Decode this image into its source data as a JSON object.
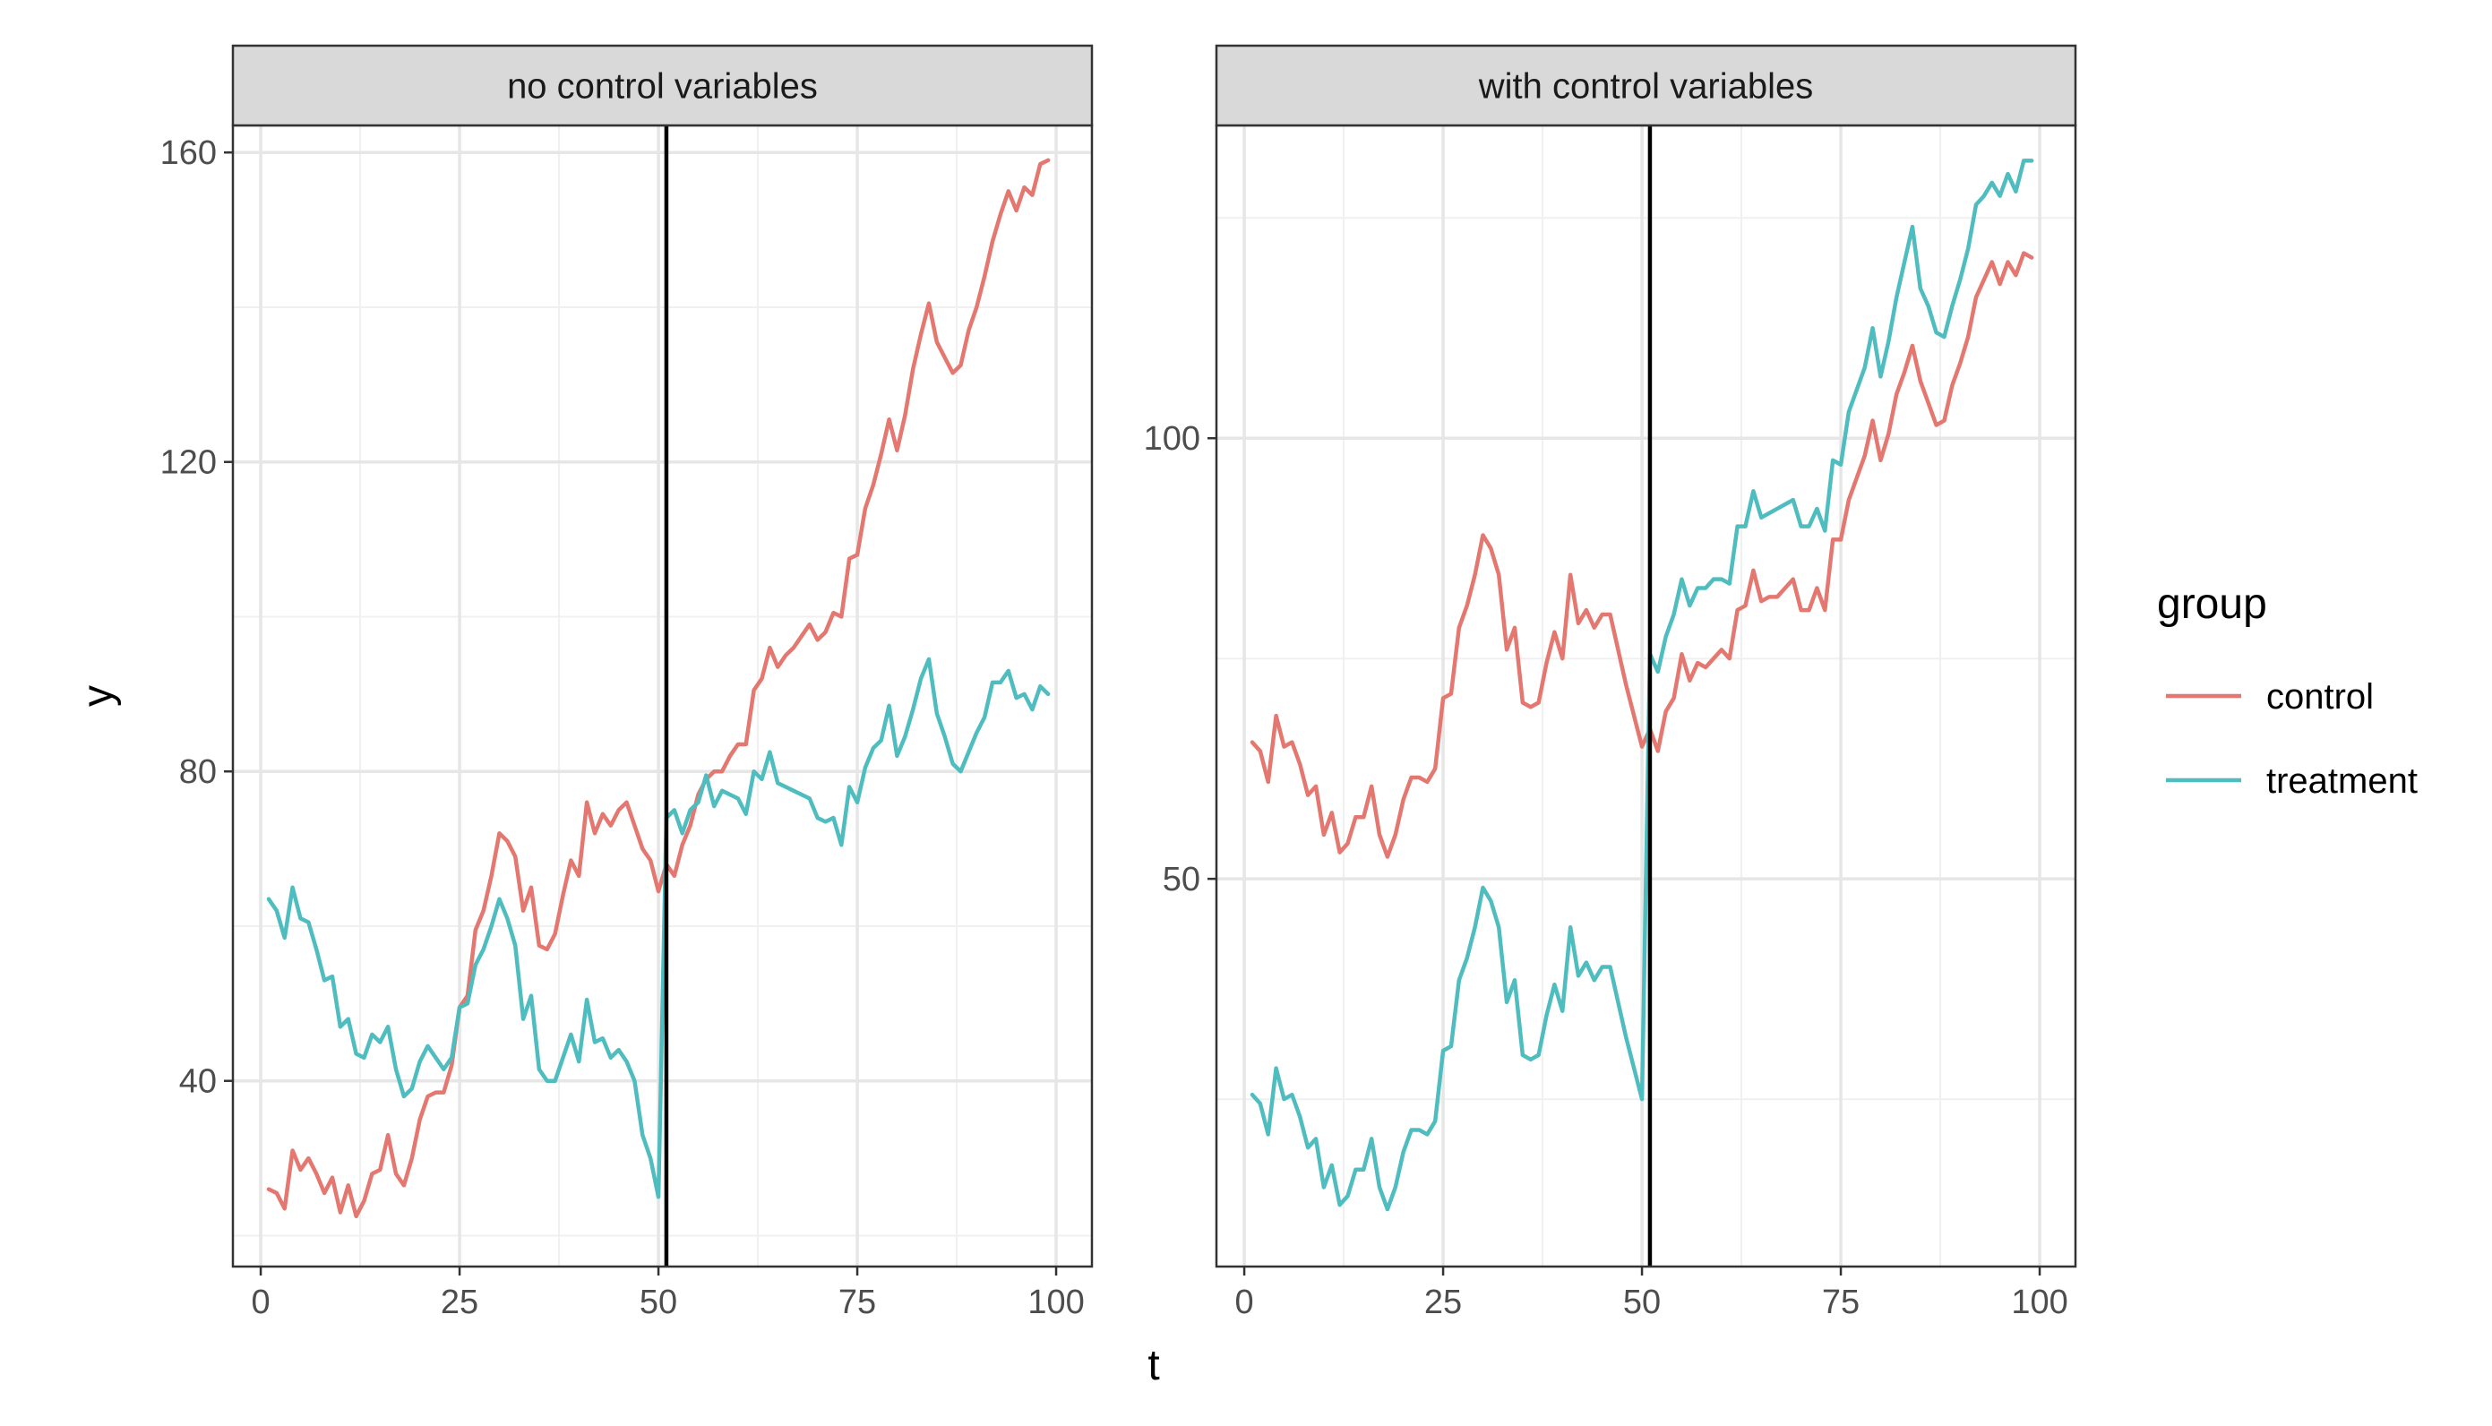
{
  "chart_data": {
    "type": "line",
    "xlabel": "t",
    "ylabel": "y",
    "legend": {
      "title": "group",
      "placement": "right"
    },
    "colors": {
      "control": "#E4776F",
      "treatment": "#4FBDBF",
      "vline": "#000000"
    },
    "grid": true,
    "panels": [
      {
        "title": "no control variables",
        "xlim": [
          -3.5,
          104.5
        ],
        "ylim": [
          16,
          163.5
        ],
        "xticks": [
          0,
          25,
          50,
          75,
          100
        ],
        "xtick_labels": [
          "0",
          "25",
          "50",
          "75",
          "100"
        ],
        "yticks": [
          40,
          80,
          120,
          160
        ],
        "ytick_labels": [
          "40",
          "80",
          "120",
          "160"
        ],
        "vline": 51,
        "x": [
          1,
          2,
          3,
          4,
          5,
          6,
          7,
          8,
          9,
          10,
          11,
          12,
          13,
          14,
          15,
          16,
          17,
          18,
          19,
          20,
          21,
          22,
          23,
          24,
          25,
          26,
          27,
          28,
          29,
          30,
          31,
          32,
          33,
          34,
          35,
          36,
          37,
          38,
          39,
          40,
          41,
          42,
          43,
          44,
          45,
          46,
          47,
          48,
          49,
          50,
          51,
          52,
          53,
          54,
          55,
          56,
          57,
          58,
          59,
          60,
          61,
          62,
          63,
          64,
          65,
          66,
          67,
          68,
          69,
          70,
          71,
          72,
          73,
          74,
          75,
          76,
          77,
          78,
          79,
          80,
          81,
          82,
          83,
          84,
          85,
          86,
          87,
          88,
          89,
          90,
          91,
          92,
          93,
          94,
          95,
          96,
          97,
          98,
          99,
          100
        ],
        "series": [
          {
            "name": "control",
            "values": [
              26,
              25.5,
              23.5,
              31,
              28.5,
              30,
              28,
              25.5,
              27.5,
              23,
              26.5,
              22.5,
              24.5,
              28,
              28.5,
              33,
              28,
              26.5,
              30,
              35,
              38,
              38.5,
              38.5,
              42,
              49.5,
              51,
              59.5,
              62,
              66.5,
              72,
              71,
              69,
              62,
              65,
              57.5,
              57,
              59,
              64,
              68.5,
              66.5,
              76,
              72,
              74.5,
              73,
              75,
              76,
              73,
              70,
              68.5,
              64.5,
              68,
              66.5,
              70.5,
              73,
              77,
              79,
              80,
              80,
              82,
              83.5,
              83.5,
              90.5,
              92,
              96,
              93.5,
              95,
              96,
              97.5,
              99,
              97,
              98,
              100.5,
              100,
              107.5,
              108,
              114,
              117,
              121,
              125.5,
              121.5,
              126,
              132,
              136.5,
              140.5,
              135.5,
              133.5,
              131.5,
              132.5,
              137,
              140,
              144,
              148.5,
              152,
              155,
              152.5,
              155.5,
              154.5,
              158.5,
              159
            ]
          },
          {
            "name": "treatment",
            "values": [
              63.5,
              62,
              58.5,
              65,
              61,
              60.5,
              57,
              53,
              53.5,
              47,
              48,
              43.5,
              43,
              46,
              45,
              47,
              41.5,
              38,
              39,
              42.5,
              44.5,
              43,
              41.5,
              43,
              49.5,
              50,
              55,
              57,
              60,
              63.5,
              61,
              57.5,
              48,
              51,
              41.5,
              40,
              40,
              43,
              46,
              42.5,
              50.5,
              45,
              45.5,
              43,
              44,
              42.5,
              40,
              33,
              30,
              25,
              74,
              75,
              72,
              75,
              76,
              79.5,
              75.5,
              77.5,
              77,
              76.5,
              74.5,
              80,
              79,
              82.5,
              78.5,
              78,
              77.5,
              77,
              76.5,
              74,
              73.5,
              74,
              70.5,
              78,
              76,
              80.5,
              83,
              84,
              88.5,
              82,
              84.5,
              88,
              92,
              94.5,
              87.5,
              84.5,
              81,
              80,
              82.5,
              85,
              87,
              91.5,
              91.5,
              93,
              89.5,
              90,
              88,
              91,
              90
            ]
          }
        ]
      },
      {
        "title": "with control variables",
        "xlim": [
          -3.5,
          104.5
        ],
        "ylim": [
          6,
          135.5
        ],
        "xticks": [
          0,
          25,
          50,
          75,
          100
        ],
        "xtick_labels": [
          "0",
          "25",
          "50",
          "75",
          "100"
        ],
        "yticks": [
          50,
          100
        ],
        "ytick_labels": [
          "50",
          "100"
        ],
        "vline": 51,
        "x": [
          1,
          2,
          3,
          4,
          5,
          6,
          7,
          8,
          9,
          10,
          11,
          12,
          13,
          14,
          15,
          16,
          17,
          18,
          19,
          20,
          21,
          22,
          23,
          24,
          25,
          26,
          27,
          28,
          29,
          30,
          31,
          32,
          33,
          34,
          35,
          36,
          37,
          38,
          39,
          40,
          41,
          42,
          43,
          44,
          45,
          46,
          47,
          48,
          49,
          50,
          51,
          52,
          53,
          54,
          55,
          56,
          57,
          58,
          59,
          60,
          61,
          62,
          63,
          64,
          65,
          66,
          67,
          68,
          69,
          70,
          71,
          72,
          73,
          74,
          75,
          76,
          77,
          78,
          79,
          80,
          81,
          82,
          83,
          84,
          85,
          86,
          87,
          88,
          89,
          90,
          91,
          92,
          93,
          94,
          95,
          96,
          97,
          98,
          99,
          100
        ],
        "series": [
          {
            "name": "control",
            "values": [
              65.5,
              64.5,
              61,
              68.5,
              65,
              65.5,
              63,
              59.5,
              60.5,
              55,
              57.5,
              53,
              54,
              57,
              57,
              60.5,
              55,
              52.5,
              55,
              59,
              61.5,
              61.5,
              61,
              62.5,
              70.5,
              71,
              78.5,
              81,
              84.5,
              89,
              87.5,
              84.5,
              76,
              78.5,
              70,
              69.5,
              70,
              74.5,
              78,
              75,
              84.5,
              79,
              80.5,
              78.5,
              80,
              80,
              76,
              72,
              68.5,
              65,
              67,
              64.5,
              69,
              70.5,
              75.5,
              72.5,
              74.5,
              74,
              75,
              76,
              75,
              80.5,
              81,
              85,
              81.5,
              82,
              82,
              83,
              84,
              80.5,
              80.5,
              83,
              80.5,
              88.5,
              88.5,
              93,
              95.5,
              98,
              102,
              97.5,
              100.5,
              105,
              107.5,
              110.5,
              106.5,
              104,
              101.5,
              102,
              106,
              108.5,
              111.5,
              116,
              118,
              120,
              117.5,
              120,
              118.5,
              121,
              120.5
            ]
          },
          {
            "name": "treatment",
            "values": [
              25.5,
              24.5,
              21,
              28.5,
              25,
              25.5,
              23,
              19.5,
              20.5,
              15,
              17.5,
              13,
              14,
              17,
              17,
              20.5,
              15,
              12.5,
              15,
              19,
              21.5,
              21.5,
              21,
              22.5,
              30.5,
              31,
              38.5,
              41,
              44.5,
              49,
              47.5,
              44.5,
              36,
              38.5,
              30,
              29.5,
              30,
              34.5,
              38,
              35,
              44.5,
              39,
              40.5,
              38.5,
              40,
              40,
              36,
              32,
              28.5,
              25,
              75.5,
              73.5,
              77.5,
              80,
              84,
              81,
              83,
              83,
              84,
              84,
              83.5,
              90,
              90,
              94,
              91,
              91.5,
              92,
              92.5,
              93,
              90,
              90,
              92,
              89.5,
              97.5,
              97,
              103,
              105.5,
              108,
              112.5,
              107,
              111,
              116,
              120,
              124,
              117,
              115,
              112,
              111.5,
              115,
              118,
              121.5,
              126.5,
              127.5,
              129,
              127.5,
              130,
              128,
              131.5,
              131.5
            ]
          }
        ]
      }
    ]
  }
}
